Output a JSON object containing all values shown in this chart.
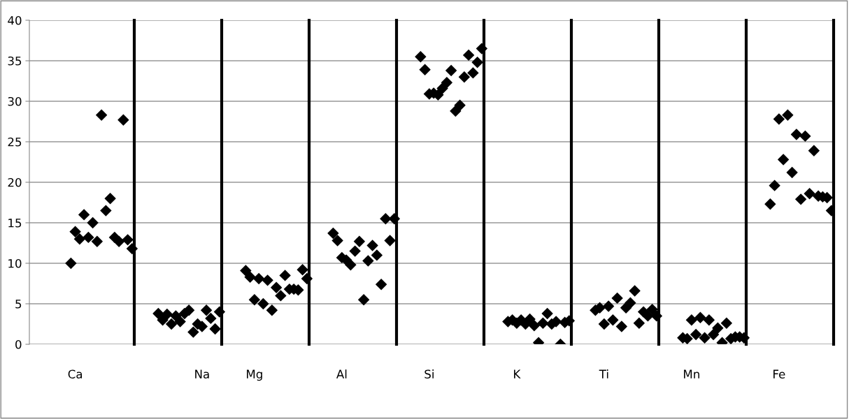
{
  "chart_data": {
    "type": "scatter",
    "categories": [
      null,
      null,
      null,
      null,
      null,
      null,
      null,
      null,
      null,
      null,
      "Ca",
      null,
      null,
      null,
      null,
      null,
      null,
      null,
      null,
      null,
      null,
      null,
      null,
      null,
      null,
      null,
      null,
      null,
      null,
      null,
      null,
      null,
      null,
      null,
      null,
      null,
      null,
      null,
      null,
      "Na",
      null,
      null,
      null,
      null,
      null,
      null,
      null,
      null,
      null,
      null,
      null,
      "Mg",
      null,
      null,
      null,
      null,
      null,
      null,
      null,
      null,
      null,
      null,
      null,
      null,
      null,
      null,
      null,
      null,
      null,
      null,
      null,
      "Al",
      null,
      null,
      null,
      null,
      null,
      null,
      null,
      null,
      null,
      null,
      null,
      null,
      null,
      null,
      null,
      null,
      null,
      null,
      null,
      "Si",
      null,
      null,
      null,
      null,
      null,
      null,
      null,
      null,
      null,
      null,
      null,
      null,
      null,
      null,
      null,
      null,
      null,
      null,
      null,
      "K",
      null,
      null,
      null,
      null,
      null,
      null,
      null,
      null,
      null,
      null,
      null,
      null,
      null,
      null,
      null,
      null,
      null,
      null,
      null,
      "Ti",
      null,
      null,
      null,
      null,
      null,
      null,
      null,
      null,
      null,
      null,
      null,
      null,
      null,
      null,
      null,
      null,
      null,
      null,
      null,
      "Mn",
      null,
      null,
      null,
      null,
      null,
      null,
      null,
      null,
      null,
      null,
      null,
      null,
      null,
      null,
      null,
      null,
      null,
      null,
      null,
      "Fe",
      null,
      null,
      null,
      null,
      null,
      null,
      null,
      null,
      null,
      null,
      null,
      null
    ],
    "series": [
      {
        "color": "#000000",
        "values": [
          null,
          null,
          null,
          null,
          null,
          null,
          null,
          null,
          null,
          10.0,
          13.9,
          13.0,
          16.0,
          13.2,
          15.0,
          12.7,
          28.3,
          16.5,
          18.0,
          13.2,
          12.7,
          27.7,
          12.9,
          11.8,
          null,
          null,
          null,
          null,
          null,
          3.8,
          3.0,
          3.7,
          2.5,
          3.5,
          2.8,
          3.8,
          4.2,
          1.5,
          2.5,
          2.2,
          4.2,
          3.2,
          1.9,
          4.0,
          null,
          null,
          null,
          null,
          null,
          9.1,
          8.3,
          5.5,
          8.1,
          5.0,
          7.9,
          4.2,
          7.0,
          6.0,
          8.5,
          6.8,
          6.8,
          6.7,
          9.2,
          8.1,
          null,
          null,
          null,
          null,
          null,
          13.7,
          12.8,
          10.7,
          10.4,
          9.8,
          11.5,
          12.7,
          5.5,
          10.3,
          12.2,
          11.0,
          7.4,
          15.5,
          12.8,
          15.5,
          null,
          null,
          null,
          null,
          null,
          35.5,
          33.9,
          30.9,
          31.0,
          30.8,
          31.6,
          32.3,
          33.8,
          28.8,
          29.5,
          33.0,
          35.7,
          33.5,
          34.8,
          36.5,
          null,
          null,
          null,
          null,
          null,
          2.8,
          3.0,
          2.6,
          3.0,
          2.5,
          3.1,
          2.3,
          0.2,
          2.6,
          3.8,
          2.5,
          2.8,
          0.0,
          2.7,
          2.9,
          null,
          null,
          null,
          null,
          null,
          4.2,
          4.5,
          2.5,
          4.7,
          3.0,
          5.7,
          2.2,
          4.5,
          5.1,
          6.6,
          2.6,
          4.0,
          3.5,
          4.3,
          3.5,
          null,
          null,
          null,
          null,
          null,
          0.8,
          0.7,
          3.0,
          1.2,
          3.3,
          0.8,
          3.0,
          1.2,
          2.0,
          0.2,
          2.6,
          0.7,
          0.9,
          0.9,
          0.8,
          null,
          null,
          null,
          null,
          null,
          17.3,
          19.6,
          27.8,
          22.8,
          28.3,
          21.2,
          25.9,
          17.9,
          25.7,
          18.6,
          23.9,
          18.3,
          18.2,
          18.1,
          16.5
        ]
      }
    ],
    "ylim": [
      0,
      40
    ],
    "yticks": [
      0,
      5,
      10,
      15,
      20,
      25,
      30,
      35,
      40
    ],
    "grid": "y",
    "marker": "diamond",
    "legend": false
  }
}
